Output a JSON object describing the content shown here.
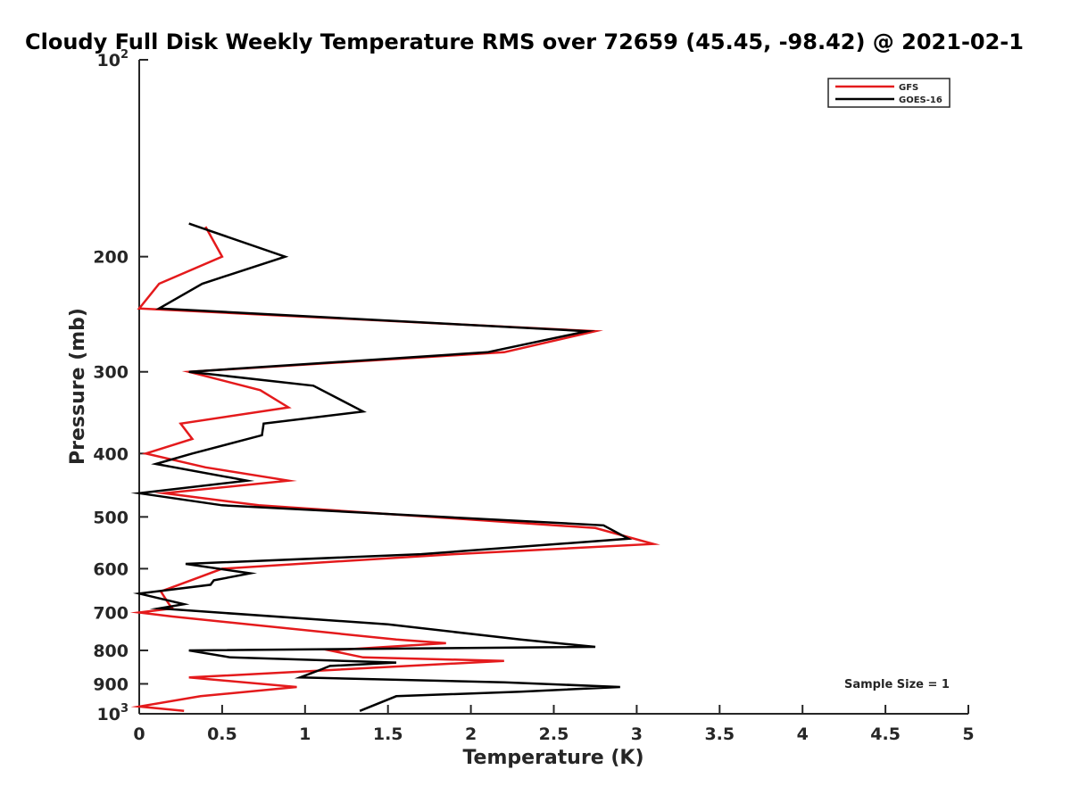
{
  "chart_data": {
    "type": "line",
    "title": "Cloudy Full Disk Weekly Temperature RMS over 72659 (45.45, -98.42) @ 2021-02-1",
    "xlabel": "Temperature (K)",
    "ylabel": "Pressure (mb)",
    "xlim": [
      0,
      5
    ],
    "ylim": [
      100,
      1000
    ],
    "yscale": "log",
    "y_reversed": true,
    "x_ticks": [
      "0",
      "0.5",
      "1",
      "1.5",
      "2",
      "2.5",
      "3",
      "3.5",
      "4",
      "4.5",
      "5"
    ],
    "y_ticks_major": [
      {
        "value": 100,
        "base": "10",
        "exp": "2"
      },
      {
        "value": 1000,
        "base": "10",
        "exp": "3"
      }
    ],
    "y_ticks": [
      "200",
      "300",
      "400",
      "500",
      "600",
      "700",
      "800",
      "900"
    ],
    "y_tick_values": [
      200,
      300,
      400,
      500,
      600,
      700,
      800,
      900
    ],
    "grid": false,
    "legend_position": "top-right",
    "annotation": "Sample Size = 1",
    "series": [
      {
        "name": "GFS",
        "color": "#e41a1c",
        "x": [
          0.4,
          0.5,
          0.12,
          0.0,
          2.75,
          2.2,
          0.3,
          0.73,
          0.9,
          0.25,
          0.32,
          0.04,
          0.4,
          0.9,
          0.15,
          0.72,
          2.75,
          3.1,
          1.9,
          0.5,
          0.35,
          0.13,
          0.18,
          0.2,
          0.0,
          0.2,
          1.55,
          1.85,
          1.15,
          1.35,
          2.2,
          0.3,
          0.95,
          0.37,
          0.0,
          0.27
        ],
        "y": [
          180,
          200,
          220,
          240,
          260,
          280,
          300,
          320,
          340,
          360,
          380,
          400,
          420,
          440,
          460,
          480,
          520,
          550,
          570,
          600,
          620,
          650,
          680,
          690,
          700,
          710,
          770,
          780,
          800,
          820,
          830,
          880,
          910,
          940,
          975,
          990
        ]
      },
      {
        "name": "GOES-16",
        "color": "#000000",
        "x": [
          0.3,
          0.88,
          0.38,
          0.12,
          2.7,
          2.1,
          0.3,
          1.05,
          1.35,
          0.75,
          0.74,
          0.32,
          0.1,
          0.65,
          0.0,
          0.5,
          2.8,
          2.95,
          1.7,
          0.28,
          0.67,
          0.45,
          0.43,
          0.0,
          0.27,
          0.12,
          1.5,
          2.3,
          2.75,
          0.3,
          0.55,
          1.55,
          1.15,
          1.1,
          0.97,
          2.2,
          2.9,
          2.3,
          1.55,
          1.33
        ],
        "y": [
          178,
          200,
          220,
          240,
          260,
          280,
          300,
          315,
          345,
          360,
          375,
          400,
          415,
          440,
          460,
          480,
          515,
          540,
          570,
          590,
          610,
          625,
          635,
          655,
          680,
          690,
          730,
          770,
          790,
          800,
          820,
          835,
          845,
          855,
          880,
          895,
          910,
          925,
          940,
          990
        ]
      }
    ]
  }
}
